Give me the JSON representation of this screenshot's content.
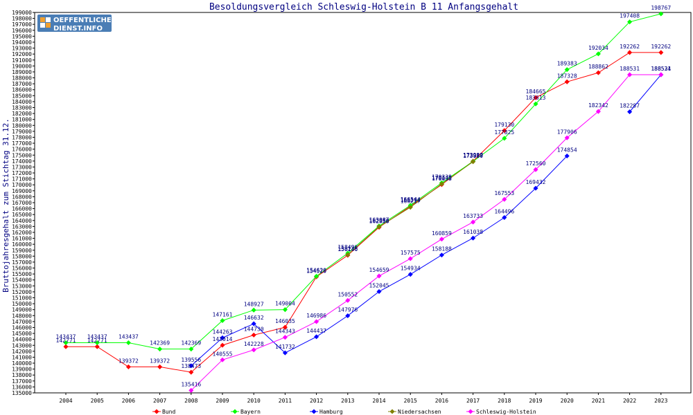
{
  "logo": {
    "line1": "OEFFENTLICHER",
    "line2": "DIENST.INFO"
  },
  "colors": {
    "Bund": "#ff0000",
    "Bayern": "#00ff00",
    "Hamburg": "#0000ff",
    "Niedersachsen": "#808000",
    "Schleswig-Holstein": "#ff00ff",
    "text": "#000080",
    "grid": "#c8c8c8"
  },
  "chart_data": {
    "type": "line",
    "title": "Besoldungsvergleich Schleswig-Holstein B 11 Anfangsgehalt",
    "xlabel": "",
    "ylabel": "Bruttojahresgehalt zum Stichtag 31.12.",
    "categories": [
      "2004",
      "2005",
      "2006",
      "2007",
      "2008",
      "2009",
      "2010",
      "2011",
      "2012",
      "2013",
      "2014",
      "2015",
      "2016",
      "2017",
      "2018",
      "2019",
      "2020",
      "2021",
      "2022",
      "2023"
    ],
    "ylim": [
      135000,
      199000
    ],
    "ytick_step": 1000,
    "grid": false,
    "legend_position": "bottom",
    "series": [
      {
        "name": "Bund",
        "values": [
          142771,
          142771,
          139372,
          139372,
          138473,
          143014,
          144730,
          146035,
          154520,
          158146,
          162858,
          166394,
          170038,
          173987,
          179130,
          184665,
          187328,
          188862,
          192262,
          192262
        ]
      },
      {
        "name": "Bayern",
        "values": [
          143437,
          143437,
          143437,
          142369,
          142369,
          147161,
          148927,
          149004,
          154620,
          158496,
          163087,
          166544,
          170338,
          173939,
          177825,
          183613,
          189383,
          192034,
          197408,
          198767
        ]
      },
      {
        "name": "Hamburg",
        "values": [
          null,
          null,
          null,
          null,
          139556,
          144263,
          146632,
          141732,
          144437,
          147976,
          152045,
          154934,
          158188,
          161038,
          164496,
          169432,
          174854,
          null,
          182287,
          188524
        ]
      },
      {
        "name": "Niedersachsen",
        "values": [
          null,
          null,
          null,
          null,
          null,
          null,
          null,
          null,
          null,
          158236,
          162950,
          166217,
          170149,
          173880,
          null,
          null,
          null,
          null,
          null,
          null
        ]
      },
      {
        "name": "Schleswig-Holstein",
        "values": [
          null,
          null,
          null,
          null,
          135416,
          140555,
          142228,
          144343,
          146986,
          150552,
          154659,
          157575,
          160859,
          163733,
          167553,
          172560,
          177906,
          182342,
          188531,
          188531
        ]
      }
    ]
  }
}
